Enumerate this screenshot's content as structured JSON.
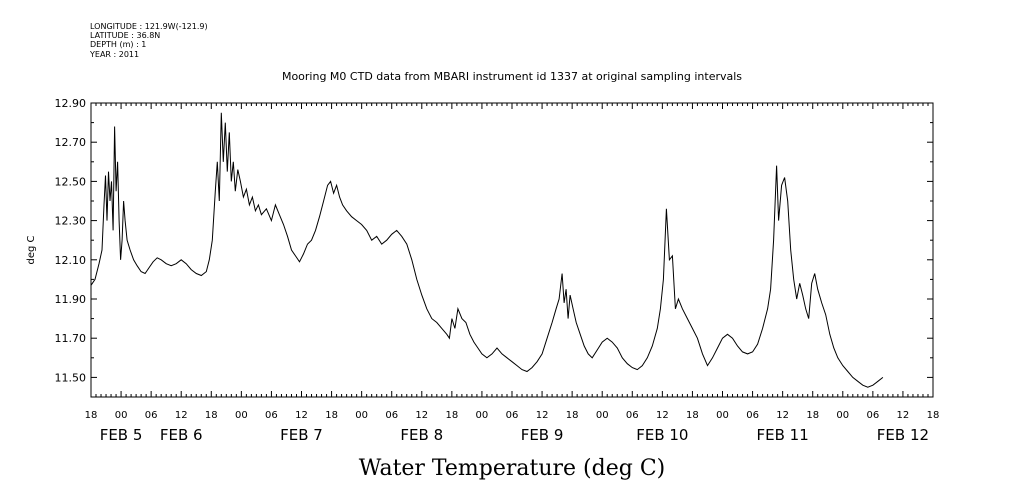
{
  "metadata": {
    "longitude": "LONGITUDE : 121.9W(-121.9)",
    "latitude": "LATITUDE : 36.8N",
    "depth": "DEPTH (m) : 1",
    "year": "YEAR : 2011"
  },
  "chart_data": {
    "type": "line",
    "title": "Mooring M0 CTD data from MBARI instrument id 1337 at original sampling intervals",
    "xlabel": "Water Temperature (deg C)",
    "ylabel": "deg C",
    "ylim": [
      11.4,
      12.9
    ],
    "xlim_hours": [
      0,
      168
    ],
    "yticks": [
      "11.50",
      "11.70",
      "11.90",
      "12.10",
      "12.30",
      "12.50",
      "12.70",
      "12.90"
    ],
    "hour_labels": [
      "18",
      "00",
      "06",
      "12",
      "18",
      "00",
      "06",
      "12",
      "18",
      "00",
      "06",
      "12",
      "18",
      "00",
      "06",
      "12",
      "18",
      "00",
      "06",
      "12",
      "18",
      "00",
      "06",
      "12",
      "18",
      "00",
      "06",
      "12",
      "18"
    ],
    "day_labels": [
      {
        "label": "FEB  5",
        "hour": 6
      },
      {
        "label": "FEB  6",
        "hour": 18
      },
      {
        "label": "FEB  7",
        "hour": 42
      },
      {
        "label": "FEB  8",
        "hour": 66
      },
      {
        "label": "FEB  9",
        "hour": 90
      },
      {
        "label": "FEB 10",
        "hour": 114
      },
      {
        "label": "FEB 11",
        "hour": 138
      },
      {
        "label": "FEB 12",
        "hour": 162
      }
    ],
    "grid": false,
    "series": [
      {
        "values": [
          [
            0,
            11.97
          ],
          [
            0.8,
            12.0
          ],
          [
            1.6,
            12.08
          ],
          [
            2.2,
            12.15
          ],
          [
            2.6,
            12.38
          ],
          [
            2.9,
            12.53
          ],
          [
            3.2,
            12.3
          ],
          [
            3.5,
            12.55
          ],
          [
            3.8,
            12.4
          ],
          [
            4.1,
            12.5
          ],
          [
            4.4,
            12.25
          ],
          [
            4.7,
            12.78
          ],
          [
            5.0,
            12.45
          ],
          [
            5.3,
            12.6
          ],
          [
            5.6,
            12.3
          ],
          [
            5.9,
            12.1
          ],
          [
            6.2,
            12.2
          ],
          [
            6.5,
            12.4
          ],
          [
            6.8,
            12.3
          ],
          [
            7.2,
            12.2
          ],
          [
            7.8,
            12.15
          ],
          [
            8.5,
            12.1
          ],
          [
            9.2,
            12.07
          ],
          [
            10,
            12.04
          ],
          [
            10.8,
            12.03
          ],
          [
            11.6,
            12.06
          ],
          [
            12.4,
            12.09
          ],
          [
            13.2,
            12.11
          ],
          [
            14,
            12.1
          ],
          [
            15,
            12.08
          ],
          [
            16,
            12.07
          ],
          [
            17,
            12.08
          ],
          [
            18,
            12.1
          ],
          [
            19,
            12.08
          ],
          [
            20,
            12.05
          ],
          [
            21,
            12.03
          ],
          [
            22,
            12.02
          ],
          [
            23,
            12.04
          ],
          [
            23.6,
            12.1
          ],
          [
            24.2,
            12.2
          ],
          [
            24.8,
            12.45
          ],
          [
            25.2,
            12.6
          ],
          [
            25.6,
            12.4
          ],
          [
            26,
            12.85
          ],
          [
            26.4,
            12.6
          ],
          [
            26.8,
            12.8
          ],
          [
            27.2,
            12.55
          ],
          [
            27.6,
            12.75
          ],
          [
            28,
            12.5
          ],
          [
            28.4,
            12.6
          ],
          [
            28.8,
            12.45
          ],
          [
            29.3,
            12.56
          ],
          [
            29.8,
            12.5
          ],
          [
            30.4,
            12.42
          ],
          [
            31,
            12.46
          ],
          [
            31.6,
            12.38
          ],
          [
            32.2,
            12.42
          ],
          [
            32.8,
            12.35
          ],
          [
            33.4,
            12.38
          ],
          [
            34,
            12.33
          ],
          [
            35,
            12.36
          ],
          [
            36,
            12.3
          ],
          [
            36.8,
            12.38
          ],
          [
            37.6,
            12.33
          ],
          [
            38.4,
            12.28
          ],
          [
            39.2,
            12.22
          ],
          [
            40,
            12.15
          ],
          [
            40.8,
            12.12
          ],
          [
            41.6,
            12.09
          ],
          [
            42.4,
            12.13
          ],
          [
            43.2,
            12.18
          ],
          [
            44,
            12.2
          ],
          [
            44.8,
            12.25
          ],
          [
            45.6,
            12.32
          ],
          [
            46.4,
            12.4
          ],
          [
            47.2,
            12.48
          ],
          [
            47.8,
            12.5
          ],
          [
            48.4,
            12.44
          ],
          [
            49,
            12.48
          ],
          [
            49.6,
            12.42
          ],
          [
            50.2,
            12.38
          ],
          [
            51,
            12.35
          ],
          [
            52,
            12.32
          ],
          [
            53,
            12.3
          ],
          [
            54,
            12.28
          ],
          [
            55,
            12.25
          ],
          [
            56,
            12.2
          ],
          [
            57,
            12.22
          ],
          [
            58,
            12.18
          ],
          [
            59,
            12.2
          ],
          [
            60,
            12.23
          ],
          [
            61,
            12.25
          ],
          [
            62,
            12.22
          ],
          [
            63,
            12.18
          ],
          [
            64,
            12.1
          ],
          [
            65,
            12.0
          ],
          [
            66,
            11.92
          ],
          [
            67,
            11.85
          ],
          [
            68,
            11.8
          ],
          [
            69,
            11.78
          ],
          [
            70,
            11.75
          ],
          [
            71,
            11.72
          ],
          [
            71.5,
            11.7
          ],
          [
            72,
            11.8
          ],
          [
            72.6,
            11.75
          ],
          [
            73.2,
            11.85
          ],
          [
            74,
            11.8
          ],
          [
            74.8,
            11.78
          ],
          [
            75.6,
            11.72
          ],
          [
            76.4,
            11.68
          ],
          [
            77.2,
            11.65
          ],
          [
            78,
            11.62
          ],
          [
            79,
            11.6
          ],
          [
            80,
            11.62
          ],
          [
            81,
            11.65
          ],
          [
            82,
            11.62
          ],
          [
            83,
            11.6
          ],
          [
            84,
            11.58
          ],
          [
            85,
            11.56
          ],
          [
            86,
            11.54
          ],
          [
            87,
            11.53
          ],
          [
            88,
            11.55
          ],
          [
            89,
            11.58
          ],
          [
            90,
            11.62
          ],
          [
            91,
            11.7
          ],
          [
            92,
            11.78
          ],
          [
            92.8,
            11.85
          ],
          [
            93.4,
            11.9
          ],
          [
            94,
            12.03
          ],
          [
            94.4,
            11.88
          ],
          [
            94.8,
            11.95
          ],
          [
            95.2,
            11.8
          ],
          [
            95.6,
            11.92
          ],
          [
            96.2,
            11.85
          ],
          [
            96.8,
            11.78
          ],
          [
            97.6,
            11.72
          ],
          [
            98.4,
            11.66
          ],
          [
            99.2,
            11.62
          ],
          [
            100,
            11.6
          ],
          [
            101,
            11.64
          ],
          [
            102,
            11.68
          ],
          [
            103,
            11.7
          ],
          [
            104,
            11.68
          ],
          [
            105,
            11.65
          ],
          [
            106,
            11.6
          ],
          [
            107,
            11.57
          ],
          [
            108,
            11.55
          ],
          [
            109,
            11.54
          ],
          [
            110,
            11.56
          ],
          [
            111,
            11.6
          ],
          [
            112,
            11.66
          ],
          [
            113,
            11.75
          ],
          [
            113.6,
            11.85
          ],
          [
            114.2,
            12.0
          ],
          [
            114.8,
            12.36
          ],
          [
            115.4,
            12.1
          ],
          [
            116,
            12.12
          ],
          [
            116.6,
            11.85
          ],
          [
            117.2,
            11.9
          ],
          [
            118,
            11.85
          ],
          [
            119,
            11.8
          ],
          [
            120,
            11.75
          ],
          [
            121,
            11.7
          ],
          [
            122,
            11.62
          ],
          [
            123,
            11.56
          ],
          [
            124,
            11.6
          ],
          [
            125,
            11.65
          ],
          [
            126,
            11.7
          ],
          [
            127,
            11.72
          ],
          [
            128,
            11.7
          ],
          [
            129,
            11.66
          ],
          [
            130,
            11.63
          ],
          [
            131,
            11.62
          ],
          [
            132,
            11.63
          ],
          [
            133,
            11.67
          ],
          [
            134,
            11.75
          ],
          [
            135,
            11.85
          ],
          [
            135.6,
            11.95
          ],
          [
            136.2,
            12.2
          ],
          [
            136.8,
            12.58
          ],
          [
            137.2,
            12.3
          ],
          [
            137.8,
            12.48
          ],
          [
            138.4,
            12.52
          ],
          [
            139,
            12.4
          ],
          [
            139.6,
            12.15
          ],
          [
            140.2,
            12.0
          ],
          [
            140.8,
            11.9
          ],
          [
            141.4,
            11.98
          ],
          [
            142,
            11.92
          ],
          [
            142.6,
            11.85
          ],
          [
            143.2,
            11.8
          ],
          [
            143.8,
            11.98
          ],
          [
            144.4,
            12.03
          ],
          [
            145,
            11.95
          ],
          [
            145.8,
            11.88
          ],
          [
            146.6,
            11.82
          ],
          [
            147.4,
            11.72
          ],
          [
            148.2,
            11.65
          ],
          [
            149,
            11.6
          ],
          [
            150,
            11.56
          ],
          [
            151,
            11.53
          ],
          [
            152,
            11.5
          ],
          [
            153,
            11.48
          ],
          [
            154,
            11.46
          ],
          [
            155,
            11.45
          ],
          [
            156,
            11.46
          ],
          [
            157,
            11.48
          ],
          [
            158,
            11.5
          ]
        ]
      }
    ]
  }
}
